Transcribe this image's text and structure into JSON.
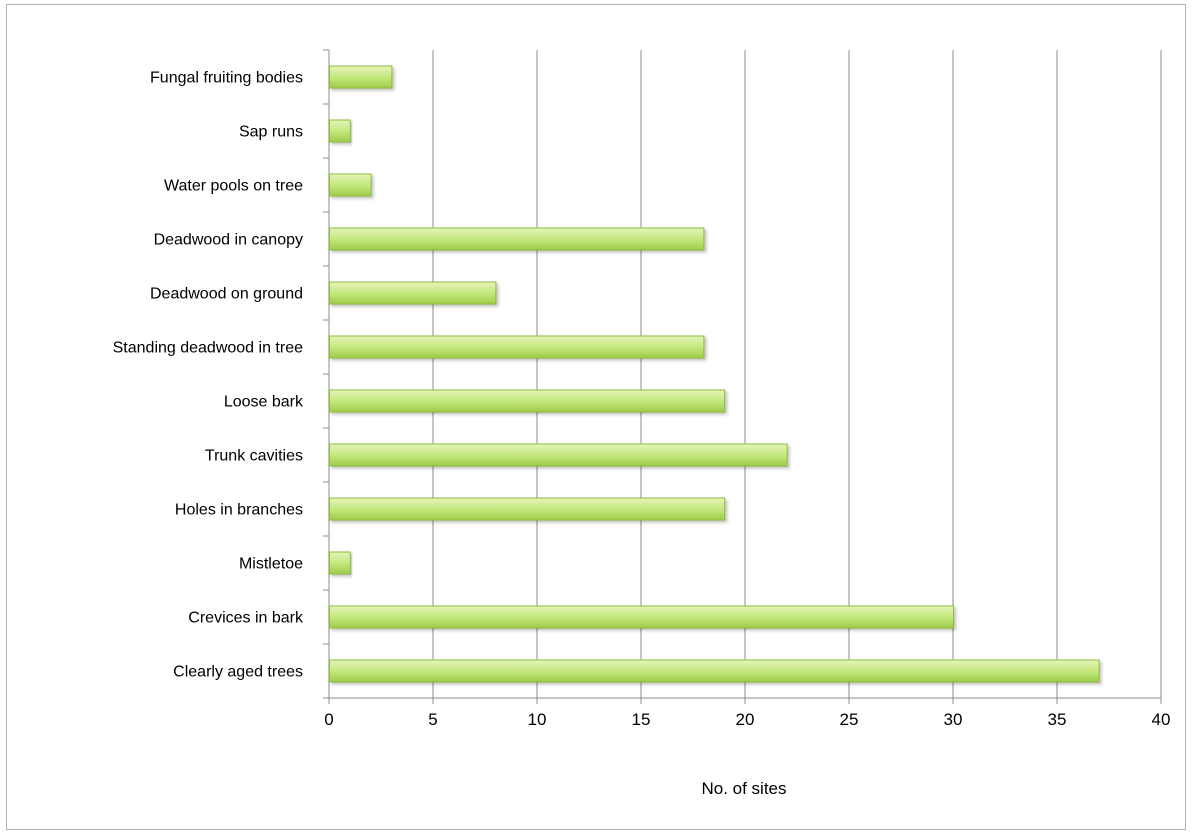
{
  "chart_data": {
    "type": "bar",
    "orientation": "horizontal",
    "categories": [
      "Clearly aged trees",
      "Crevices in bark",
      "Mistletoe",
      "Holes in branches",
      "Trunk cavities",
      "Loose bark",
      "Standing deadwood in tree",
      "Deadwood on ground",
      "Deadwood in canopy",
      "Water pools on tree",
      "Sap runs",
      "Fungal fruiting bodies"
    ],
    "values": [
      37,
      30,
      1,
      19,
      22,
      19,
      18,
      8,
      18,
      2,
      1,
      3
    ],
    "xlabel": "No. of sites",
    "ylabel": "",
    "xlim": [
      0,
      40
    ],
    "xticks": [
      "0",
      "5",
      "10",
      "15",
      "20",
      "25",
      "30",
      "35",
      "40"
    ],
    "grid": true,
    "colors": {
      "bar_light": "#e6f5b8",
      "bar_mid": "#c2e67a",
      "bar_dark": "#9ccc48",
      "bar_edge": "#8cbc3c",
      "grid": "#8c8c8c"
    }
  }
}
